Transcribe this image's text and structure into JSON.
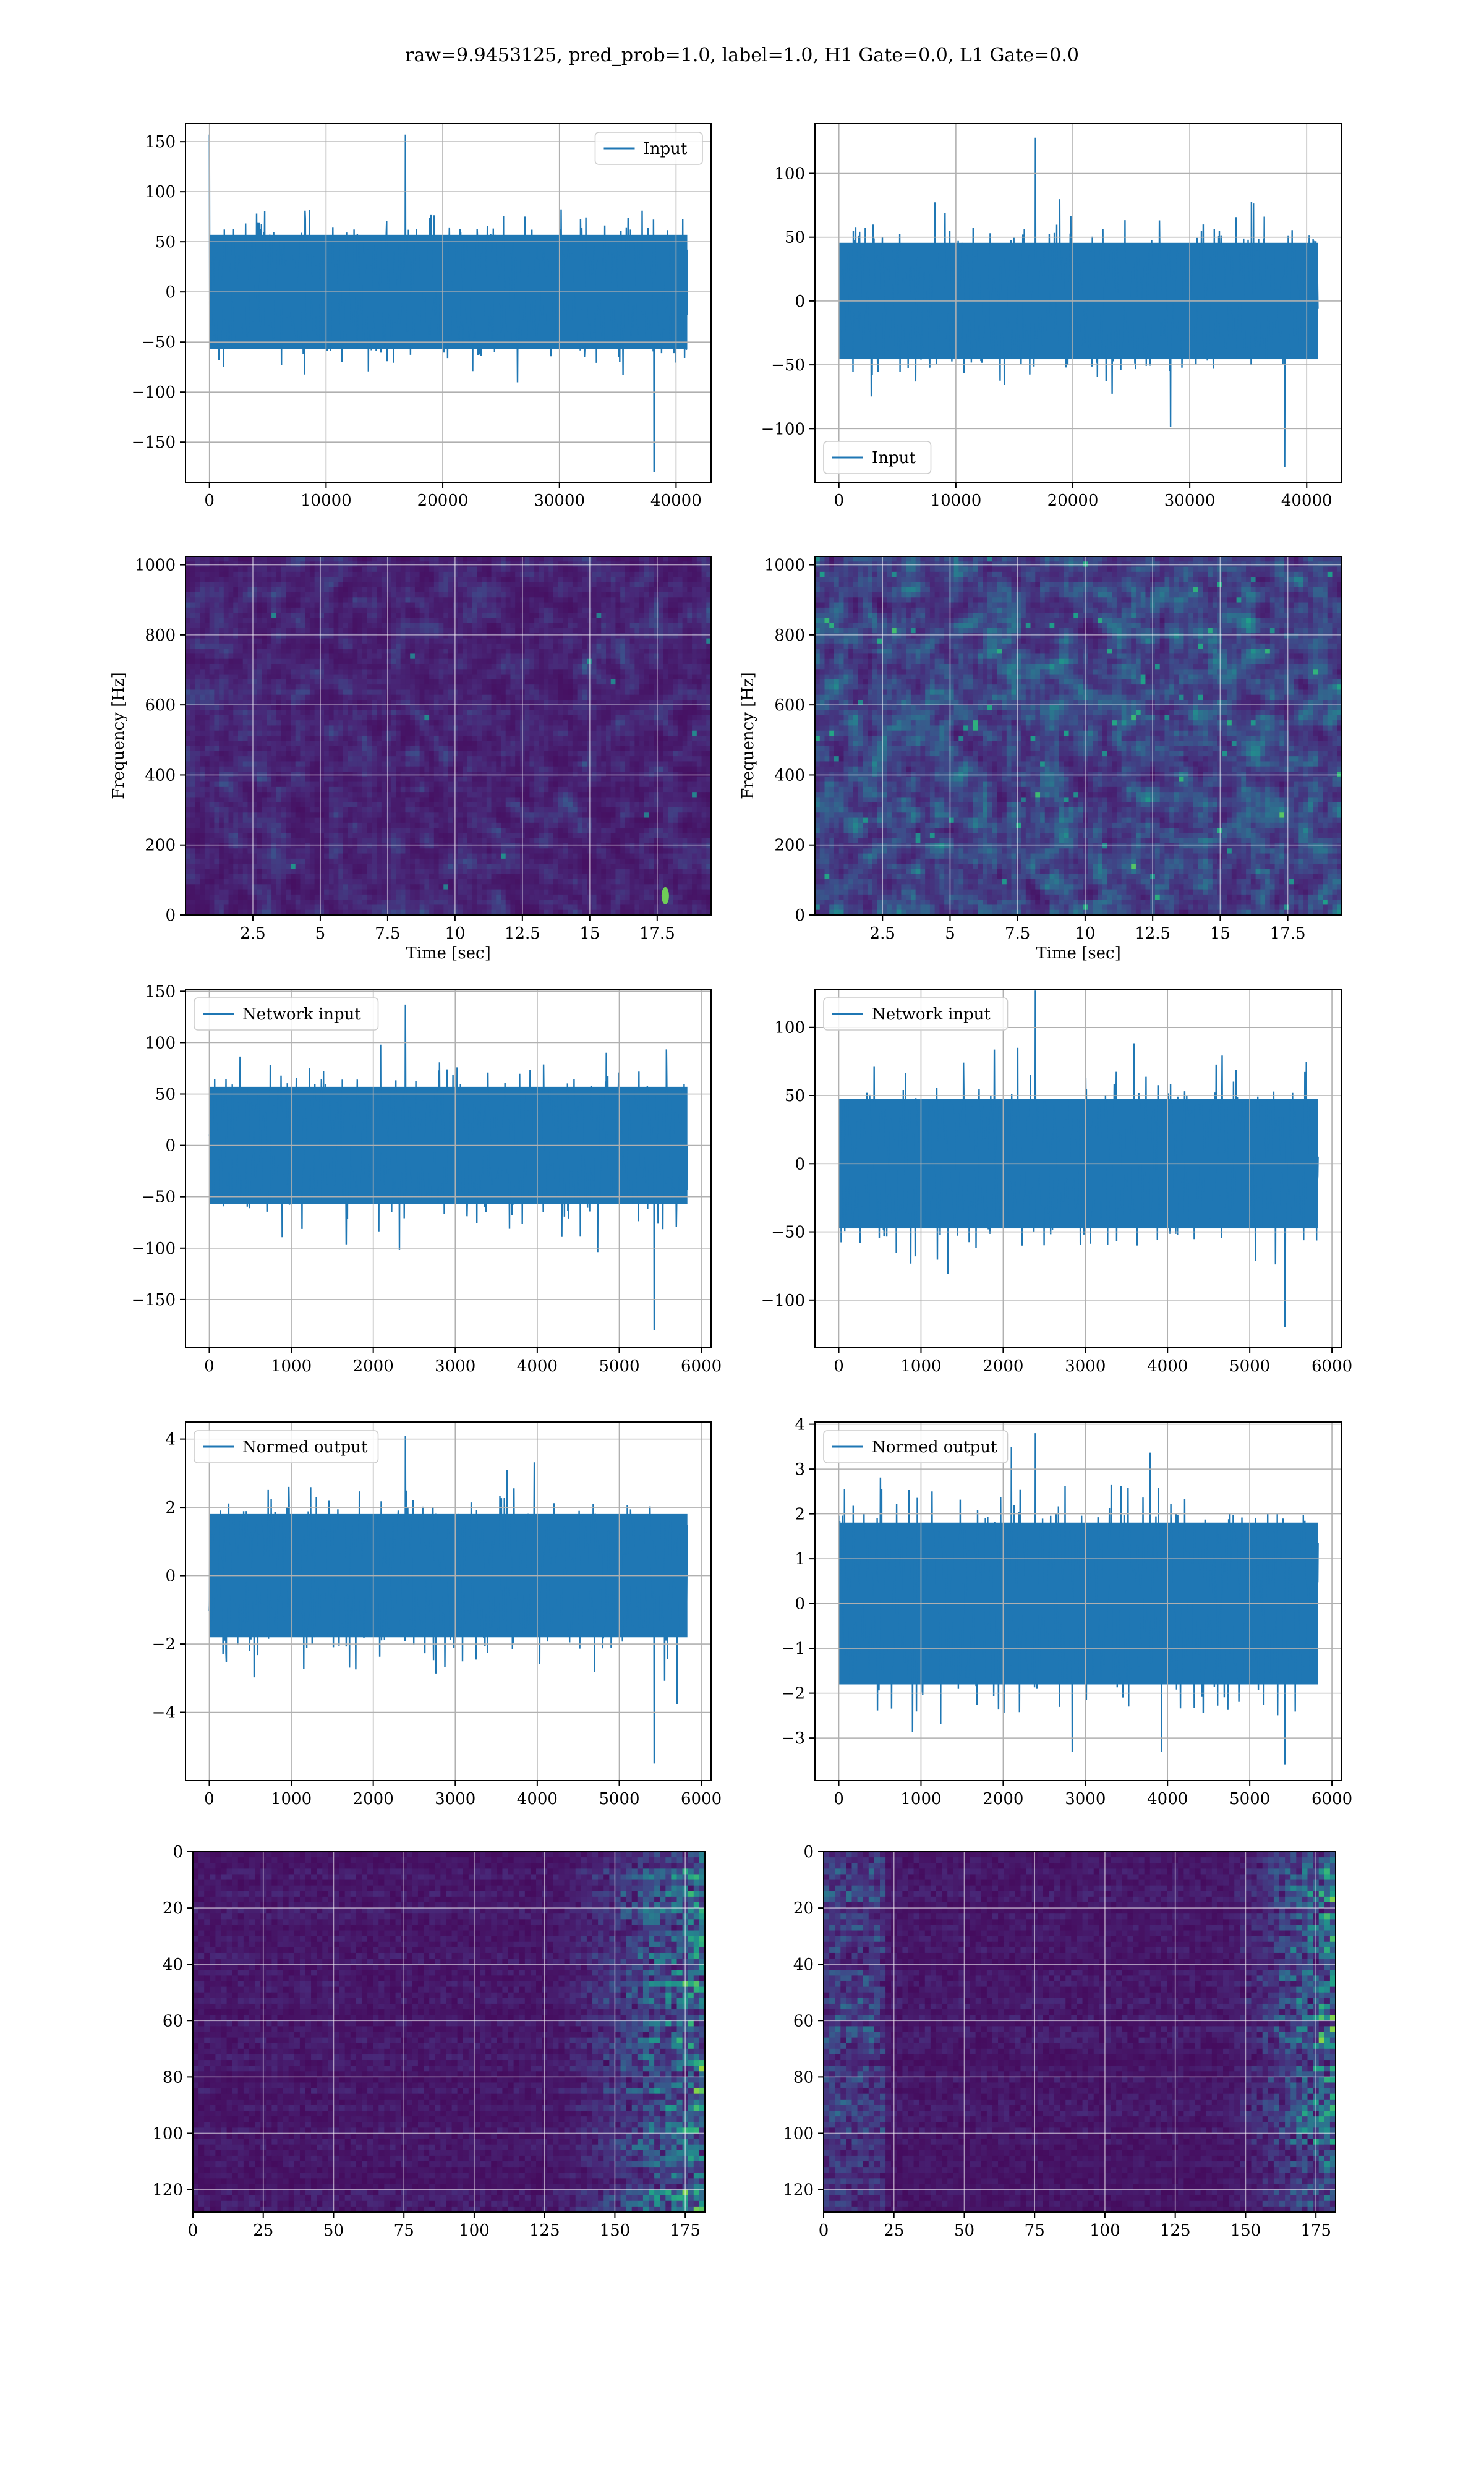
{
  "figure": {
    "suptitle": "raw=9.9453125, pred_prob=1.0, label=1.0, H1 Gate=0.0, L1 Gate=0.0",
    "line_color": "#1f77b4"
  },
  "chart_data": [
    {
      "id": "input-h1",
      "type": "line",
      "style": "noise",
      "series": [
        {
          "name": "Input",
          "n_points": 40960,
          "amplitude_std": 30,
          "min": -180,
          "max": 157,
          "max_at": 0
        }
      ],
      "legend": "upper right",
      "xlim": [
        -2050,
        43000
      ],
      "ylim": [
        -190,
        168
      ],
      "xticks": [
        0,
        10000,
        20000,
        30000,
        40000
      ],
      "yticks": [
        -150,
        -100,
        -50,
        0,
        50,
        100,
        150
      ],
      "grid": true,
      "xlabel": "",
      "ylabel": ""
    },
    {
      "id": "input-l1",
      "type": "line",
      "style": "noise",
      "series": [
        {
          "name": "Input",
          "n_points": 40960,
          "amplitude_std": 24,
          "min": -130,
          "max": 128
        }
      ],
      "legend": "lower left",
      "xlim": [
        -2050,
        43000
      ],
      "ylim": [
        -142,
        139
      ],
      "xticks": [
        0,
        10000,
        20000,
        30000,
        40000
      ],
      "yticks": [
        -100,
        -50,
        0,
        50,
        100
      ],
      "grid": true,
      "xlabel": "",
      "ylabel": ""
    },
    {
      "id": "spectrogram-h1",
      "type": "heatmap",
      "style": "spectrogram",
      "colormap": "viridis",
      "xlim": [
        0,
        19.5
      ],
      "ylim": [
        0,
        1024
      ],
      "xticks": [
        2.5,
        5.0,
        7.5,
        10.0,
        12.5,
        15.0,
        17.5
      ],
      "yticks": [
        0,
        200,
        400,
        600,
        800,
        1000
      ],
      "xlabel": "Time [sec]",
      "ylabel": "Frequency [Hz]",
      "grid": true,
      "hot_spot": {
        "t": 17.8,
        "f": 55
      }
    },
    {
      "id": "spectrogram-l1",
      "type": "heatmap",
      "style": "spectrogram",
      "colormap": "viridis",
      "xlim": [
        0,
        19.5
      ],
      "ylim": [
        0,
        1024
      ],
      "xticks": [
        2.5,
        5.0,
        7.5,
        10.0,
        12.5,
        15.0,
        17.5
      ],
      "yticks": [
        0,
        200,
        400,
        600,
        800,
        1000
      ],
      "xlabel": "Time [sec]",
      "ylabel": "Frequency [Hz]",
      "grid": true,
      "busier": true
    },
    {
      "id": "network-input-h1",
      "type": "line",
      "style": "noise",
      "series": [
        {
          "name": "Network input",
          "n_points": 5832,
          "amplitude_std": 30,
          "min": -180,
          "max": 137
        }
      ],
      "legend": "upper left",
      "xlim": [
        -290,
        6120
      ],
      "ylim": [
        -197,
        152
      ],
      "xticks": [
        0,
        1000,
        2000,
        3000,
        4000,
        5000,
        6000
      ],
      "yticks": [
        -150,
        -100,
        -50,
        0,
        50,
        100,
        150
      ],
      "grid": true,
      "xlabel": "",
      "ylabel": ""
    },
    {
      "id": "network-input-l1",
      "type": "line",
      "style": "noise",
      "series": [
        {
          "name": "Network input",
          "n_points": 5832,
          "amplitude_std": 25,
          "min": -120,
          "max": 127
        }
      ],
      "legend": "upper left",
      "xlim": [
        -290,
        6120
      ],
      "ylim": [
        -135,
        128
      ],
      "xticks": [
        0,
        1000,
        2000,
        3000,
        4000,
        5000,
        6000
      ],
      "yticks": [
        -100,
        -50,
        0,
        50,
        100
      ],
      "grid": true,
      "xlabel": "",
      "ylabel": ""
    },
    {
      "id": "normed-output-h1",
      "type": "line",
      "style": "noise",
      "series": [
        {
          "name": "Normed output",
          "n_points": 5832,
          "amplitude_std": 0.95,
          "min": -5.5,
          "max": 4.1
        }
      ],
      "legend": "upper left",
      "xlim": [
        -290,
        6120
      ],
      "ylim": [
        -6.0,
        4.5
      ],
      "xticks": [
        0,
        1000,
        2000,
        3000,
        4000,
        5000,
        6000
      ],
      "yticks": [
        -4,
        -2,
        0,
        2,
        4
      ],
      "grid": true,
      "xlabel": "",
      "ylabel": ""
    },
    {
      "id": "normed-output-l1",
      "type": "line",
      "style": "noise",
      "series": [
        {
          "name": "Normed output",
          "n_points": 5832,
          "amplitude_std": 0.95,
          "min": -3.6,
          "max": 3.8
        }
      ],
      "legend": "upper left",
      "xlim": [
        -290,
        6120
      ],
      "ylim": [
        -3.95,
        4.05
      ],
      "xticks": [
        0,
        1000,
        2000,
        3000,
        4000,
        5000,
        6000
      ],
      "yticks": [
        -3,
        -2,
        -1,
        0,
        1,
        2,
        3,
        4
      ],
      "grid": true,
      "xlabel": "",
      "ylabel": ""
    },
    {
      "id": "feature-map-h1",
      "type": "heatmap",
      "style": "feature_map",
      "colormap": "viridis",
      "n_rows": 128,
      "n_cols": 182,
      "xlim": [
        0,
        182
      ],
      "ylim": [
        128,
        0
      ],
      "xticks": [
        0,
        25,
        50,
        75,
        100,
        125,
        150,
        175
      ],
      "yticks": [
        0,
        20,
        40,
        60,
        80,
        100,
        120
      ],
      "grid": true,
      "activity_rises_after": 125
    },
    {
      "id": "feature-map-l1",
      "type": "heatmap",
      "style": "feature_map",
      "colormap": "viridis",
      "n_rows": 128,
      "n_cols": 182,
      "xlim": [
        0,
        182
      ],
      "ylim": [
        128,
        0
      ],
      "xticks": [
        0,
        25,
        50,
        75,
        100,
        125,
        150,
        175
      ],
      "yticks": [
        0,
        20,
        40,
        60,
        80,
        100,
        120
      ],
      "grid": true,
      "activity_rises_after": 140,
      "early_activity": true
    }
  ]
}
